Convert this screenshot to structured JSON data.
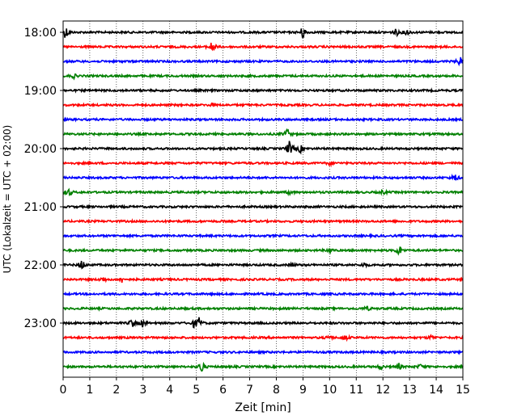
{
  "chart_data": {
    "type": "line",
    "title": "",
    "xlabel": "Zeit  [min]",
    "ylabel": "UTC (Lokalzeit = UTC + 02:00)",
    "xlim": [
      0,
      15
    ],
    "x_ticks": [
      "0",
      "1",
      "2",
      "3",
      "4",
      "5",
      "6",
      "7",
      "8",
      "9",
      "10",
      "11",
      "12",
      "13",
      "14",
      "15"
    ],
    "y_tick_labels": [
      "18:00",
      "19:00",
      "20:00",
      "21:00",
      "22:00",
      "23:00"
    ],
    "grid": "vertical dotted at each minute",
    "trace_interval_min": 15,
    "trace_colors": [
      "#000000",
      "#ff0000",
      "#0000ff",
      "#008000"
    ],
    "traces": [
      {
        "start": "18:00",
        "events": [
          [
            0.1,
            1.0
          ],
          [
            9.0,
            1.0
          ],
          [
            12.5,
            0.5
          ],
          [
            12.9,
            0.5
          ]
        ]
      },
      {
        "start": "18:15",
        "events": [
          [
            5.6,
            1.0
          ]
        ]
      },
      {
        "start": "18:30",
        "events": [
          [
            14.9,
            0.7
          ]
        ]
      },
      {
        "start": "18:45",
        "events": [
          [
            0.4,
            0.3
          ]
        ]
      },
      {
        "start": "19:00",
        "events": []
      },
      {
        "start": "19:15",
        "events": [
          [
            5.6,
            0.2
          ]
        ]
      },
      {
        "start": "19:30",
        "events": []
      },
      {
        "start": "19:45",
        "events": [
          [
            8.4,
            0.8
          ]
        ]
      },
      {
        "start": "20:00",
        "events": [
          [
            8.5,
            1.2
          ],
          [
            8.9,
            0.6
          ]
        ]
      },
      {
        "start": "20:15",
        "events": [
          [
            10.0,
            0.3
          ]
        ]
      },
      {
        "start": "20:30",
        "events": [
          [
            14.7,
            0.6
          ]
        ]
      },
      {
        "start": "20:45",
        "events": [
          [
            0.2,
            0.6
          ],
          [
            8.5,
            0.3
          ],
          [
            12.0,
            0.3
          ]
        ]
      },
      {
        "start": "21:00",
        "events": []
      },
      {
        "start": "21:15",
        "events": []
      },
      {
        "start": "21:30",
        "events": []
      },
      {
        "start": "21:45",
        "events": [
          [
            10.0,
            0.3
          ],
          [
            12.6,
            0.8
          ]
        ]
      },
      {
        "start": "22:00",
        "events": [
          [
            0.7,
            0.8
          ],
          [
            8.6,
            0.3
          ],
          [
            11.3,
            0.3
          ]
        ]
      },
      {
        "start": "22:15",
        "events": [
          [
            1.5,
            0.4
          ],
          [
            2.2,
            0.4
          ]
        ]
      },
      {
        "start": "22:30",
        "events": []
      },
      {
        "start": "22:45",
        "events": [
          [
            11.4,
            0.3
          ]
        ]
      },
      {
        "start": "23:00",
        "events": [
          [
            2.6,
            0.7
          ],
          [
            3.0,
            0.6
          ],
          [
            5.1,
            0.8
          ],
          [
            4.9,
            0.5
          ]
        ]
      },
      {
        "start": "23:15",
        "events": [
          [
            10.0,
            0.3
          ],
          [
            10.6,
            0.4
          ],
          [
            13.8,
            0.3
          ]
        ]
      },
      {
        "start": "23:30",
        "events": []
      },
      {
        "start": "23:45",
        "events": [
          [
            5.2,
            1.0
          ],
          [
            11.9,
            0.4
          ],
          [
            12.6,
            0.4
          ],
          [
            13.4,
            0.3
          ]
        ]
      }
    ]
  }
}
